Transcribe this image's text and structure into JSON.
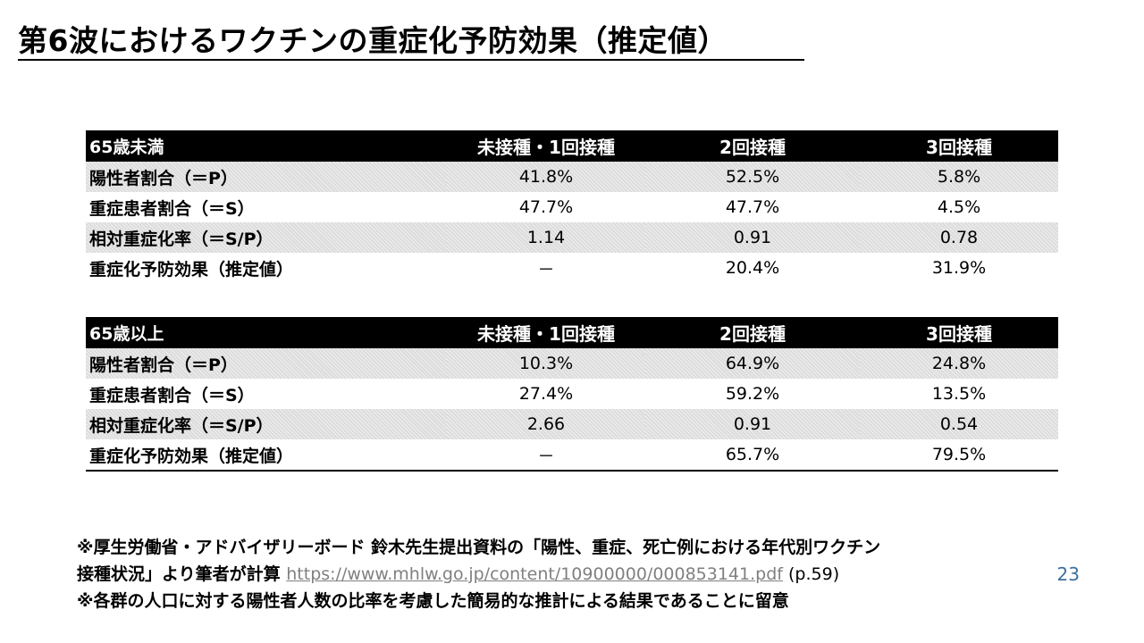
{
  "title": "第6波におけるワクチンの重症化予防効果（推定値）",
  "tables": [
    {
      "group": "65歳未満",
      "headers": [
        "未接種・1回接種",
        "2回接種",
        "3回接種"
      ],
      "rows": [
        {
          "label": "陽性者割合（＝P）",
          "values": [
            "41.8%",
            "52.5%",
            "5.8%"
          ]
        },
        {
          "label": "重症患者割合（＝S）",
          "values": [
            "47.7%",
            "47.7%",
            "4.5%"
          ]
        },
        {
          "label": "相対重症化率（＝S/P）",
          "values": [
            "1.14",
            "0.91",
            "0.78"
          ]
        },
        {
          "label": "重症化予防効果（推定値）",
          "values": [
            "－",
            "20.4%",
            "31.9%"
          ]
        }
      ]
    },
    {
      "group": "65歳以上",
      "headers": [
        "未接種・1回接種",
        "2回接種",
        "3回接種"
      ],
      "rows": [
        {
          "label": "陽性者割合（＝P）",
          "values": [
            "10.3%",
            "64.9%",
            "24.8%"
          ]
        },
        {
          "label": "重症患者割合（＝S）",
          "values": [
            "27.4%",
            "59.2%",
            "13.5%"
          ]
        },
        {
          "label": "相対重症化率（＝S/P）",
          "values": [
            "2.66",
            "0.91",
            "0.54"
          ]
        },
        {
          "label": "重症化予防効果（推定値）",
          "values": [
            "－",
            "65.7%",
            "79.5%"
          ]
        }
      ]
    }
  ],
  "footnotes": {
    "line1": "※厚生労働省・アドバイザリーボード 鈴木先生提出資料の「陽性、重症、死亡例における年代別ワクチン",
    "line2_prefix": "接種状況」より筆者が計算 ",
    "line2_link": "https://www.mhlw.go.jp/content/10900000/000853141.pdf",
    "line2_suffix": " (p.59)",
    "line3": "※各群の人口に対する陽性者人数の比率を考慮した簡易的な推計による結果であることに留意"
  },
  "page_number": "23"
}
